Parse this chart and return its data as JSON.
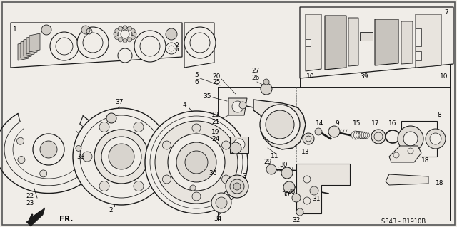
{
  "background_color": "#f0ede8",
  "line_color": "#1a1a1a",
  "diagram_code": "S843 - B1910B",
  "fig_width": 6.4,
  "fig_height": 3.19,
  "dpi": 100,
  "text_fontsize": 6.5,
  "title_fontsize": 8
}
